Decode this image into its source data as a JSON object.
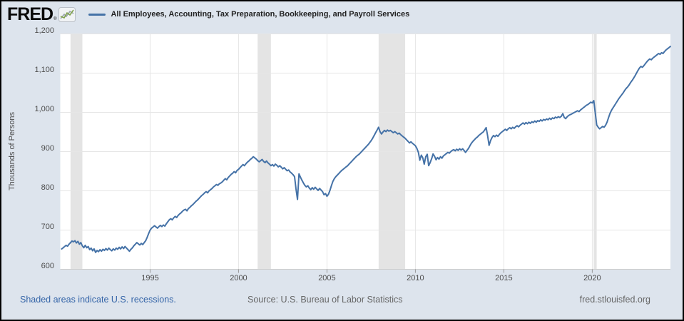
{
  "header": {
    "logo_text": "FRED",
    "registered_mark": "®",
    "legend_label": "All Employees, Accounting, Tax Preparation, Bookkeeping, and Payroll Services"
  },
  "footer": {
    "recession_note": "Shaded areas indicate U.S. recessions.",
    "source": "Source: U.S. Bureau of Labor Statistics",
    "site": "fred.stlouisfed.org"
  },
  "chart_data": {
    "type": "line",
    "title": "All Employees, Accounting, Tax Preparation, Bookkeeping, and Payroll Services",
    "xlabel": "",
    "ylabel": "Thousands of Persons",
    "x_range": [
      1989.92,
      2024.42
    ],
    "y_range": [
      600,
      1200
    ],
    "grid": true,
    "legend_position": "top",
    "line_color": "#4572a7",
    "recession_band_color": "#e4e4e4",
    "grid_color": "#e6e6e6",
    "axis_line_color": "#cccccc",
    "tick_color": "#999999",
    "x_ticks": [
      {
        "value": 1995,
        "label": "1995"
      },
      {
        "value": 2000,
        "label": "2000"
      },
      {
        "value": 2005,
        "label": "2005"
      },
      {
        "value": 2010,
        "label": "2010"
      },
      {
        "value": 2015,
        "label": "2015"
      },
      {
        "value": 2020,
        "label": "2020"
      }
    ],
    "y_ticks": [
      {
        "value": 600,
        "label": "600"
      },
      {
        "value": 700,
        "label": "700"
      },
      {
        "value": 800,
        "label": "800"
      },
      {
        "value": 900,
        "label": "900"
      },
      {
        "value": 1000,
        "label": "1,000"
      },
      {
        "value": 1100,
        "label": "1,100"
      },
      {
        "value": 1200,
        "label": "1,200"
      }
    ],
    "recessions": [
      [
        1990.5,
        1991.17
      ],
      [
        2001.08,
        2001.83
      ],
      [
        2007.92,
        2009.42
      ],
      [
        2020.08,
        2020.25
      ]
    ],
    "series": [
      {
        "name": "All Employees, Accounting, Tax Preparation, Bookkeeping, and Payroll Services",
        "unit": "Thousands of Persons",
        "frequency": "monthly",
        "start_year": 1990,
        "points_per_year": 12,
        "values": [
          652,
          655,
          658,
          661,
          659,
          664,
          668,
          672,
          670,
          673,
          667,
          671,
          664,
          668,
          660,
          655,
          661,
          655,
          658,
          650,
          654,
          647,
          652,
          643,
          648,
          645,
          650,
          646,
          651,
          648,
          653,
          649,
          654,
          650,
          647,
          652,
          649,
          654,
          651,
          656,
          652,
          657,
          653,
          658,
          654,
          650,
          646,
          651,
          655,
          660,
          664,
          668,
          665,
          662,
          666,
          663,
          668,
          673,
          681,
          691,
          700,
          705,
          708,
          711,
          708,
          705,
          709,
          712,
          709,
          713,
          710,
          716,
          721,
          726,
          729,
          726,
          731,
          735,
          732,
          737,
          741,
          744,
          748,
          751,
          753,
          749,
          755,
          758,
          762,
          765,
          769,
          773,
          776,
          780,
          784,
          788,
          791,
          795,
          798,
          795,
          800,
          803,
          806,
          810,
          813,
          816,
          814,
          818,
          820,
          823,
          827,
          831,
          828,
          834,
          838,
          842,
          845,
          849,
          846,
          852,
          855,
          859,
          863,
          867,
          864,
          869,
          873,
          876,
          880,
          883,
          887,
          884,
          881,
          877,
          874,
          877,
          880,
          875,
          872,
          876,
          871,
          868,
          864,
          867,
          863,
          868,
          865,
          861,
          864,
          860,
          856,
          859,
          855,
          851,
          853,
          848,
          845,
          841,
          836,
          805,
          778,
          843,
          835,
          827,
          820,
          814,
          810,
          813,
          807,
          803,
          808,
          804,
          809,
          805,
          801,
          806,
          802,
          798,
          790,
          793,
          786,
          791,
          801,
          813,
          824,
          831,
          836,
          840,
          844,
          848,
          852,
          855,
          858,
          861,
          864,
          868,
          872,
          876,
          880,
          884,
          888,
          891,
          894,
          898,
          902,
          906,
          910,
          914,
          918,
          923,
          928,
          934,
          941,
          948,
          955,
          962,
          951,
          945,
          950,
          954,
          951,
          955,
          952,
          954,
          951,
          948,
          951,
          948,
          945,
          947,
          943,
          940,
          937,
          934,
          930,
          926,
          922,
          925,
          921,
          918,
          915,
          908,
          898,
          878,
          891,
          884,
          868,
          887,
          893,
          864,
          872,
          882,
          894,
          888,
          879,
          885,
          881,
          887,
          883,
          889,
          892,
          895,
          898,
          896,
          900,
          903,
          905,
          902,
          906,
          903,
          907,
          904,
          907,
          903,
          898,
          903,
          908,
          915,
          921,
          926,
          930,
          934,
          937,
          941,
          944,
          947,
          950,
          955,
          961,
          940,
          916,
          928,
          936,
          941,
          938,
          942,
          939,
          944,
          948,
          951,
          954,
          957,
          954,
          958,
          961,
          958,
          962,
          959,
          963,
          966,
          963,
          967,
          970,
          973,
          970,
          974,
          971,
          975,
          972,
          976,
          974,
          978,
          975,
          979,
          977,
          981,
          978,
          982,
          980,
          983,
          981,
          985,
          982,
          986,
          984,
          988,
          986,
          989,
          987,
          990,
          997,
          987,
          984,
          989,
          992,
          994,
          996,
          998,
          1000,
          1002,
          1004,
          1002,
          1006,
          1009,
          1012,
          1015,
          1018,
          1020,
          1023,
          1026,
          1024,
          1030,
          1000,
          968,
          962,
          958,
          961,
          964,
          962,
          967,
          975,
          986,
          997,
          1005,
          1011,
          1017,
          1023,
          1029,
          1035,
          1040,
          1045,
          1050,
          1056,
          1061,
          1065,
          1070,
          1076,
          1081,
          1087,
          1093,
          1100,
          1107,
          1113,
          1117,
          1115,
          1119,
          1124,
          1129,
          1133,
          1136,
          1134,
          1138,
          1141,
          1144,
          1147,
          1150,
          1148,
          1152,
          1150,
          1155,
          1159,
          1162,
          1165,
          1168
        ]
      }
    ]
  }
}
